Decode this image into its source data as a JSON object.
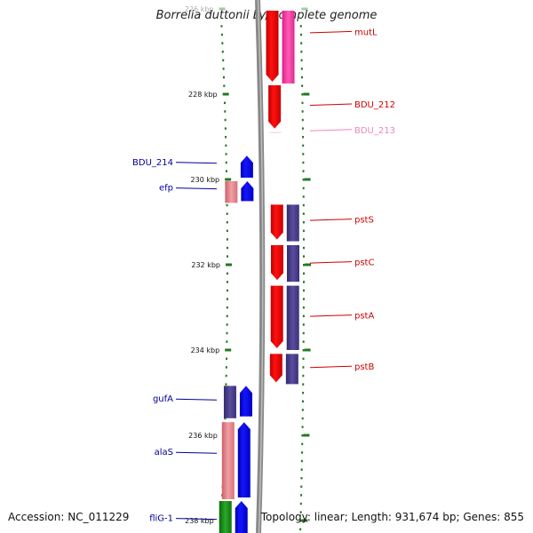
{
  "title": "Borrelia duttonii Ly, complete genome",
  "accession": "Accession: NC_011229",
  "summary": "Topology: linear; Length: 931,674 bp; Genes: 855",
  "colors": {
    "forward_gene": "#ff0000",
    "reverse_gene": "#0000ff",
    "cog_purple": "#4b3d8c",
    "cog_pink": "#ff3fa5",
    "cog_salmon": "#e8838a",
    "cog_green": "#1a8a1a",
    "backbone": "#888888",
    "tick": "#1f7a1f",
    "label_forward": "#cc0000",
    "label_reverse": "#000099",
    "label_faded": "#ee88bb"
  },
  "axis": {
    "start_kbp": 226,
    "end_kbp": 238,
    "ticks": [
      {
        "kbp": 226,
        "label": "226 kbp",
        "faded": true
      },
      {
        "kbp": 228,
        "label": "228 kbp"
      },
      {
        "kbp": 230,
        "label": "230 kbp"
      },
      {
        "kbp": 232,
        "label": "232 kbp"
      },
      {
        "kbp": 234,
        "label": "234 kbp"
      },
      {
        "kbp": 236,
        "label": "236 kbp"
      },
      {
        "kbp": 238,
        "label": "238 kbp"
      }
    ]
  },
  "genes_forward": [
    {
      "name": "mutL",
      "start": 226.0,
      "end": 227.75,
      "cog": "pink"
    },
    {
      "name": "BDU_212",
      "start": 227.75,
      "end": 228.85,
      "cog": null
    },
    {
      "name": "BDU_213",
      "start": 228.85,
      "end": 228.95,
      "cog": null,
      "faded": true
    },
    {
      "name": "pstS",
      "start": 230.55,
      "end": 231.45,
      "cog": "purple"
    },
    {
      "name": "pstC",
      "start": 231.5,
      "end": 232.4,
      "cog": "purple"
    },
    {
      "name": "pstA",
      "start": 232.45,
      "end": 234.0,
      "cog": "purple"
    },
    {
      "name": "pstB",
      "start": 234.05,
      "end": 234.8,
      "cog": "purple"
    }
  ],
  "genes_reverse": [
    {
      "name": "BDU_214",
      "start": 229.4,
      "end": 230.0,
      "cog": null
    },
    {
      "name": "efp",
      "start": 230.0,
      "end": 230.55,
      "cog": "salmon"
    },
    {
      "name": "gufA",
      "start": 234.8,
      "end": 235.6,
      "cog": "purple"
    },
    {
      "name": "alaS",
      "start": 235.65,
      "end": 237.5,
      "cog": "salmon"
    },
    {
      "name": "fliG-1",
      "start": 237.5,
      "end": 238.5,
      "cog": "green"
    }
  ],
  "labels_forward": [
    {
      "name": "mutL",
      "at_kbp": 226.55
    },
    {
      "name": "BDU_212",
      "at_kbp": 228.25
    },
    {
      "name": "BDU_213",
      "at_kbp": 228.85,
      "faded": true
    },
    {
      "name": "pstS",
      "at_kbp": 230.95
    },
    {
      "name": "pstC",
      "at_kbp": 231.95
    },
    {
      "name": "pstA",
      "at_kbp": 233.2
    },
    {
      "name": "pstB",
      "at_kbp": 234.4
    }
  ],
  "labels_reverse": [
    {
      "name": "BDU_214",
      "at_kbp": 229.6
    },
    {
      "name": "efp",
      "at_kbp": 230.2
    },
    {
      "name": "gufA",
      "at_kbp": 235.15
    },
    {
      "name": "alaS",
      "at_kbp": 236.4
    },
    {
      "name": "fliG-1",
      "at_kbp": 237.95
    }
  ]
}
